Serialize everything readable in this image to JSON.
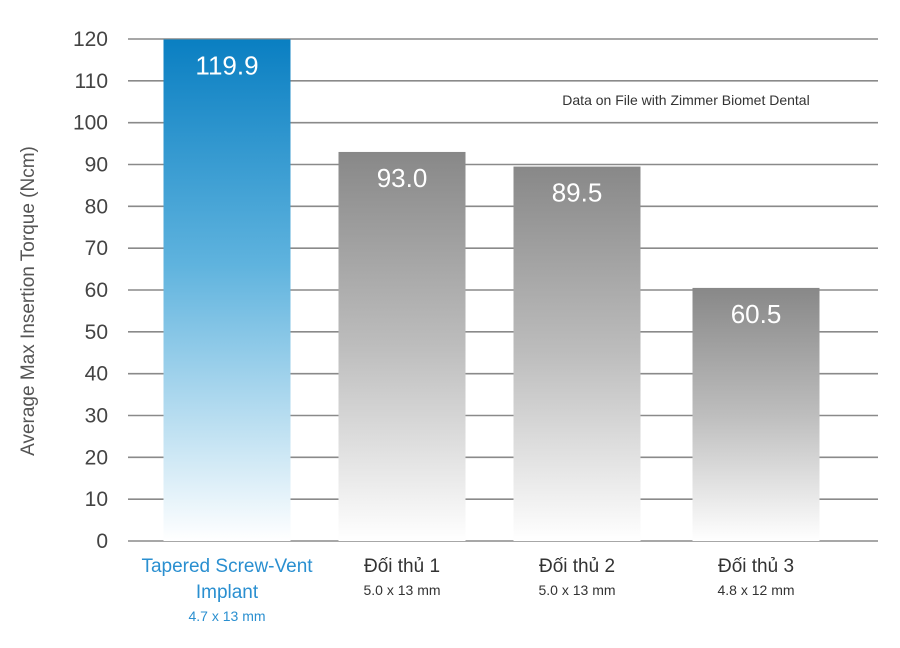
{
  "chart_data": {
    "type": "bar",
    "ylabel": "Average Max Insertion Torque (Ncm)",
    "annotation": "Data on File with Zimmer Biomet Dental",
    "ylim": [
      0,
      120
    ],
    "yticks": [
      "0",
      "10",
      "20",
      "30",
      "40",
      "50",
      "60",
      "70",
      "80",
      "90",
      "100",
      "110",
      "120"
    ],
    "grid": true,
    "categories": [
      {
        "lines": [
          "Tapered Screw-Vent",
          "Implant"
        ],
        "sub": "4.7 x 13 mm",
        "value": 119.9,
        "label": "119.9",
        "highlight": true
      },
      {
        "lines": [
          "Đối thủ 1"
        ],
        "sub": "5.0 x 13 mm",
        "value": 93.0,
        "label": "93.0",
        "highlight": false
      },
      {
        "lines": [
          "Đối thủ 2"
        ],
        "sub": "5.0 x 13 mm",
        "value": 89.5,
        "label": "89.5",
        "highlight": false
      },
      {
        "lines": [
          "Đối thủ 3"
        ],
        "sub": "4.8 x 12 mm",
        "value": 60.5,
        "label": "60.5",
        "highlight": false
      }
    ]
  },
  "colors": {
    "highlight_top": "#0a7fc2",
    "highlight_bottom": "#ffffff",
    "other_top": "#888888",
    "other_bottom": "#ffffff",
    "highlight_text": "#2a8fd0",
    "label_text": "#333333"
  }
}
